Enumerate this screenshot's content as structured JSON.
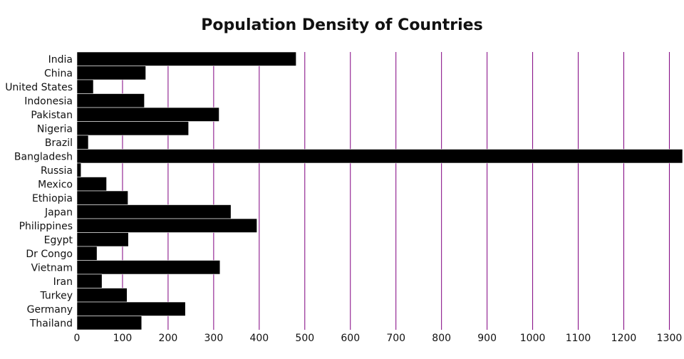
{
  "chart_data": {
    "type": "bar",
    "orientation": "horizontal",
    "title": "Population Density of Countries",
    "xlabel": "",
    "ylabel": "",
    "categories": [
      "India",
      "China",
      "United States",
      "Indonesia",
      "Pakistan",
      "Nigeria",
      "Brazil",
      "Bangladesh",
      "Russia",
      "Mexico",
      "Ethiopia",
      "Japan",
      "Philippines",
      "Egypt",
      "Dr Congo",
      "Vietnam",
      "Iran",
      "Turkey",
      "Germany",
      "Thailand"
    ],
    "values": [
      481,
      151,
      36,
      148,
      312,
      245,
      25,
      1329,
      9,
      65,
      112,
      338,
      395,
      113,
      44,
      314,
      55,
      110,
      238,
      142
    ],
    "xlim": [
      0,
      1329
    ],
    "xticks": [
      0,
      100,
      200,
      300,
      400,
      500,
      600,
      700,
      800,
      900,
      1000,
      1100,
      1200,
      1300
    ],
    "grid": true,
    "legend": "none",
    "bar_color": "#000000",
    "grid_color": "#800080"
  }
}
